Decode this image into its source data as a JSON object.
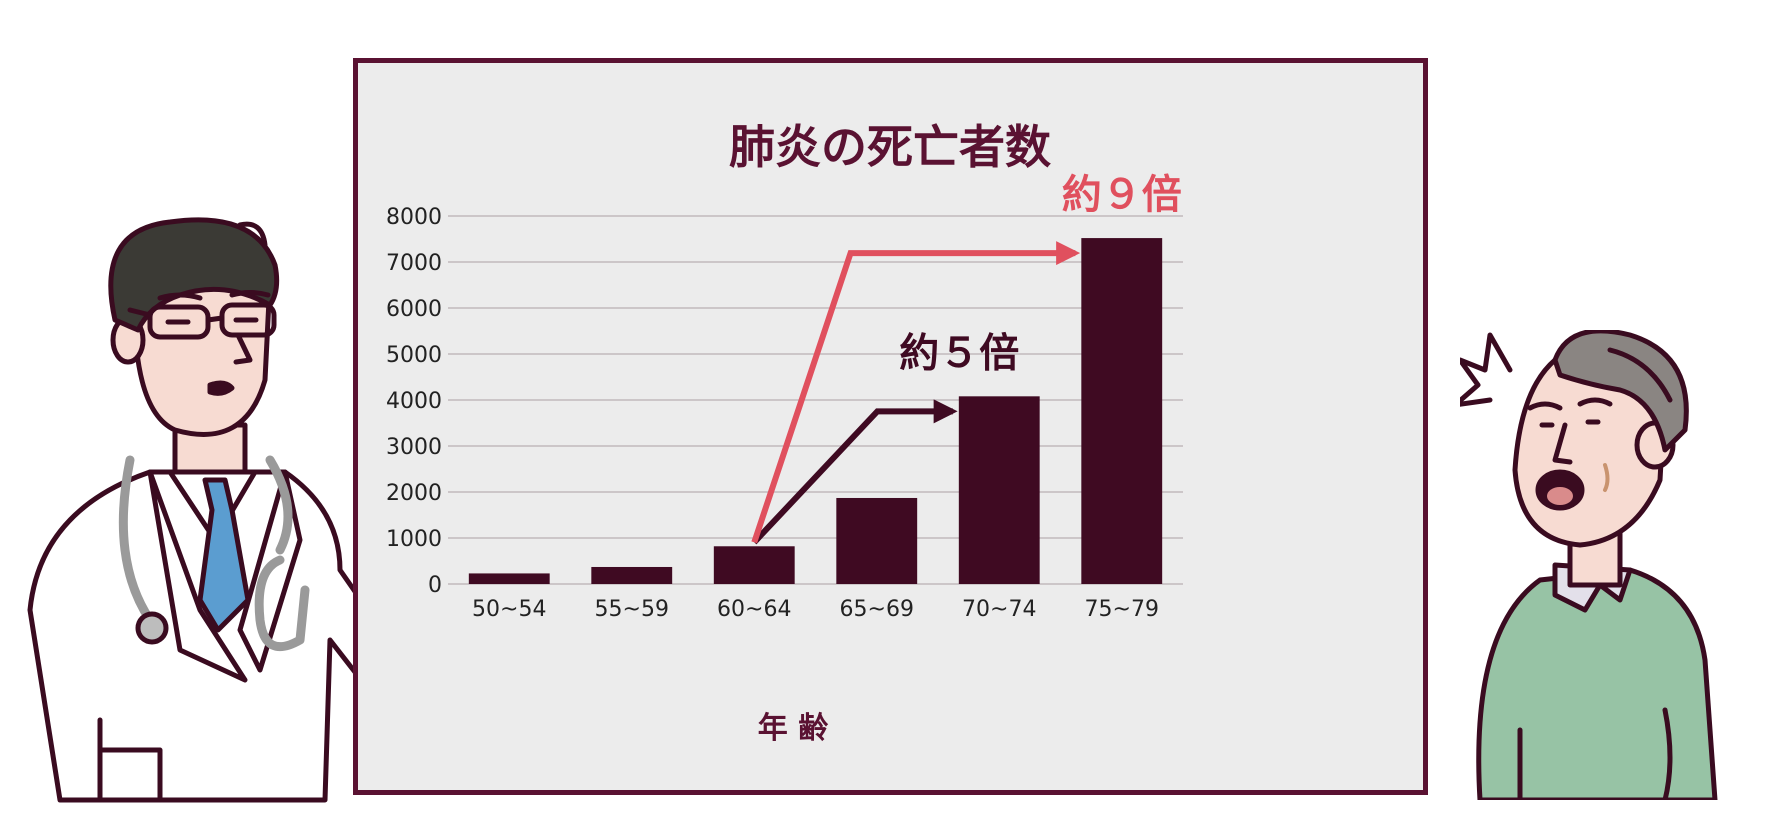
{
  "colors": {
    "bar": "#3f0a22",
    "board_border": "#5a1232",
    "board_bg": "#ececec",
    "accent_red": "#e0505e",
    "grid": "#b9aeb2",
    "text": "#222222"
  },
  "chart_data": {
    "type": "bar",
    "title": "肺炎の死亡者数",
    "xlabel": "年 齢",
    "ylabel": "",
    "categories": [
      "50~54",
      "55~59",
      "60~64",
      "65~69",
      "70~74",
      "75~79"
    ],
    "values": [
      230,
      370,
      820,
      1870,
      4080,
      7520
    ],
    "ylim": [
      0,
      8000
    ],
    "yticks": [
      "0",
      "1000",
      "2000",
      "3000",
      "4000",
      "5000",
      "6000",
      "7000",
      "8000"
    ],
    "grid": true,
    "annotations": [
      {
        "text": "約５倍",
        "from_category": "60~64",
        "to_category": "70~74",
        "color": "#3f0a22"
      },
      {
        "text": "約９倍",
        "from_category": "60~64",
        "to_category": "75~79",
        "color": "#e0505e"
      }
    ]
  },
  "illustrations": {
    "left": "doctor-presenting",
    "right": "surprised-elderly-man"
  }
}
